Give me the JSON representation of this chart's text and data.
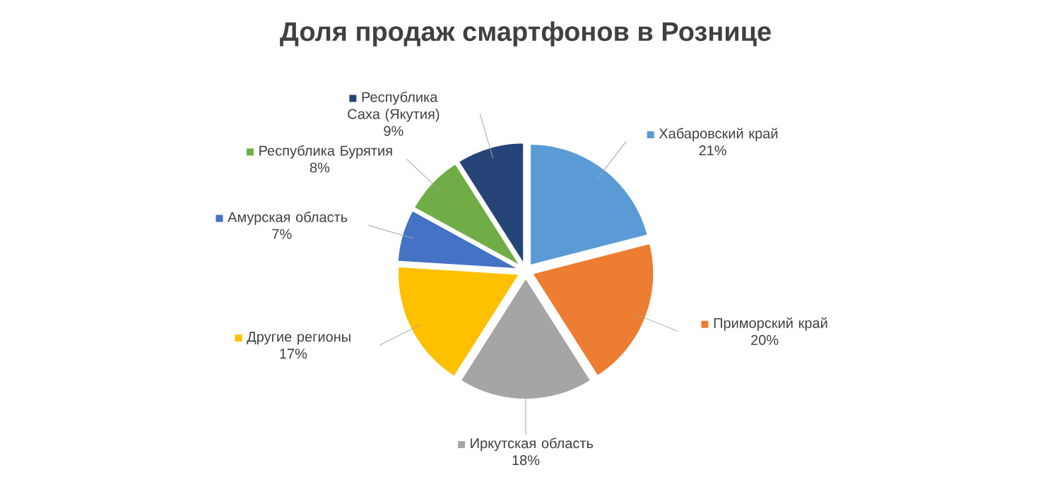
{
  "chart_data": {
    "type": "pie",
    "title": "Доля продаж смартфонов в Рознице",
    "categories": [
      "Хабаровский край",
      "Приморский край",
      "Иркутская область",
      "Другие регионы",
      "Амурская область",
      "Республика Бурятия",
      "Республика Саха (Якутия)"
    ],
    "values": [
      21,
      20,
      18,
      17,
      7,
      8,
      9
    ],
    "value_labels": [
      "21%",
      "20%",
      "18%",
      "17%",
      "7%",
      "8%",
      "9%"
    ],
    "legend": "right",
    "colors": [
      "#5b9bd5",
      "#ed7d31",
      "#a5a5a5",
      "#ffc000",
      "#4472c4",
      "#70ad47",
      "#264478"
    ]
  }
}
